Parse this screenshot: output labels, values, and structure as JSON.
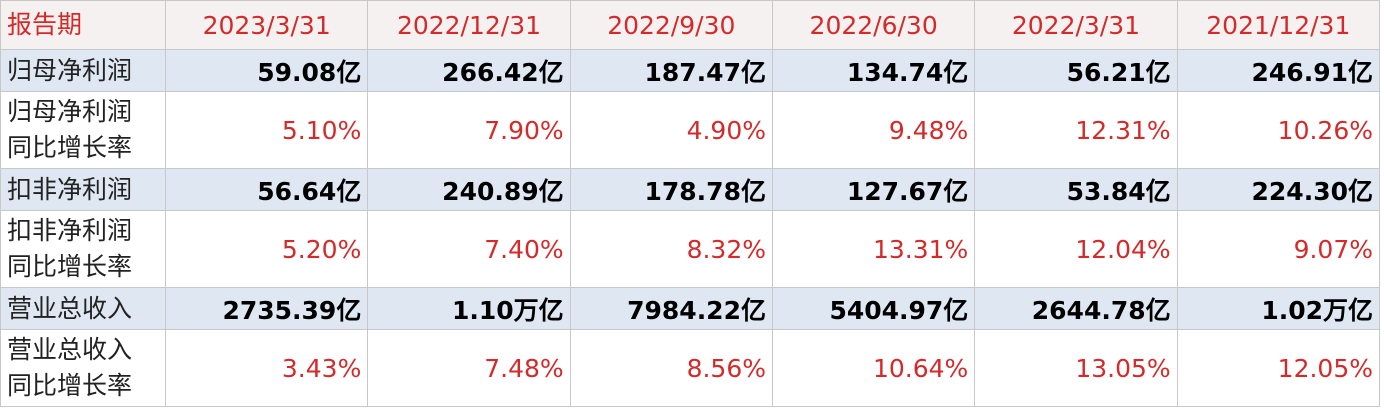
{
  "header": {
    "label": "报告期",
    "periods": [
      "2023/3/31",
      "2022/12/31",
      "2022/9/30",
      "2022/6/30",
      "2022/3/31",
      "2021/12/31"
    ]
  },
  "table": {
    "rows": [
      {
        "label": [
          "归母净利润"
        ],
        "values": [
          "59.08亿",
          "266.42亿",
          "187.47亿",
          "134.74亿",
          "56.21亿",
          "246.91亿"
        ]
      },
      {
        "label": [
          "归母净利润",
          "同比增长率"
        ],
        "values": [
          "5.10%",
          "7.90%",
          "4.90%",
          "9.48%",
          "12.31%",
          "10.26%"
        ]
      },
      {
        "label": [
          "扣非净利润"
        ],
        "values": [
          "56.64亿",
          "240.89亿",
          "178.78亿",
          "127.67亿",
          "53.84亿",
          "224.30亿"
        ]
      },
      {
        "label": [
          "扣非净利润",
          "同比增长率"
        ],
        "values": [
          "5.20%",
          "7.40%",
          "8.32%",
          "13.31%",
          "12.04%",
          "9.07%"
        ]
      },
      {
        "label": [
          "营业总收入"
        ],
        "values": [
          "2735.39亿",
          "1.10万亿",
          "7984.22亿",
          "5404.97亿",
          "2644.78亿",
          "1.02万亿"
        ]
      },
      {
        "label": [
          "营业总收入",
          "同比增长率"
        ],
        "values": [
          "3.43%",
          "7.48%",
          "8.56%",
          "10.64%",
          "13.05%",
          "12.05%"
        ]
      }
    ]
  }
}
